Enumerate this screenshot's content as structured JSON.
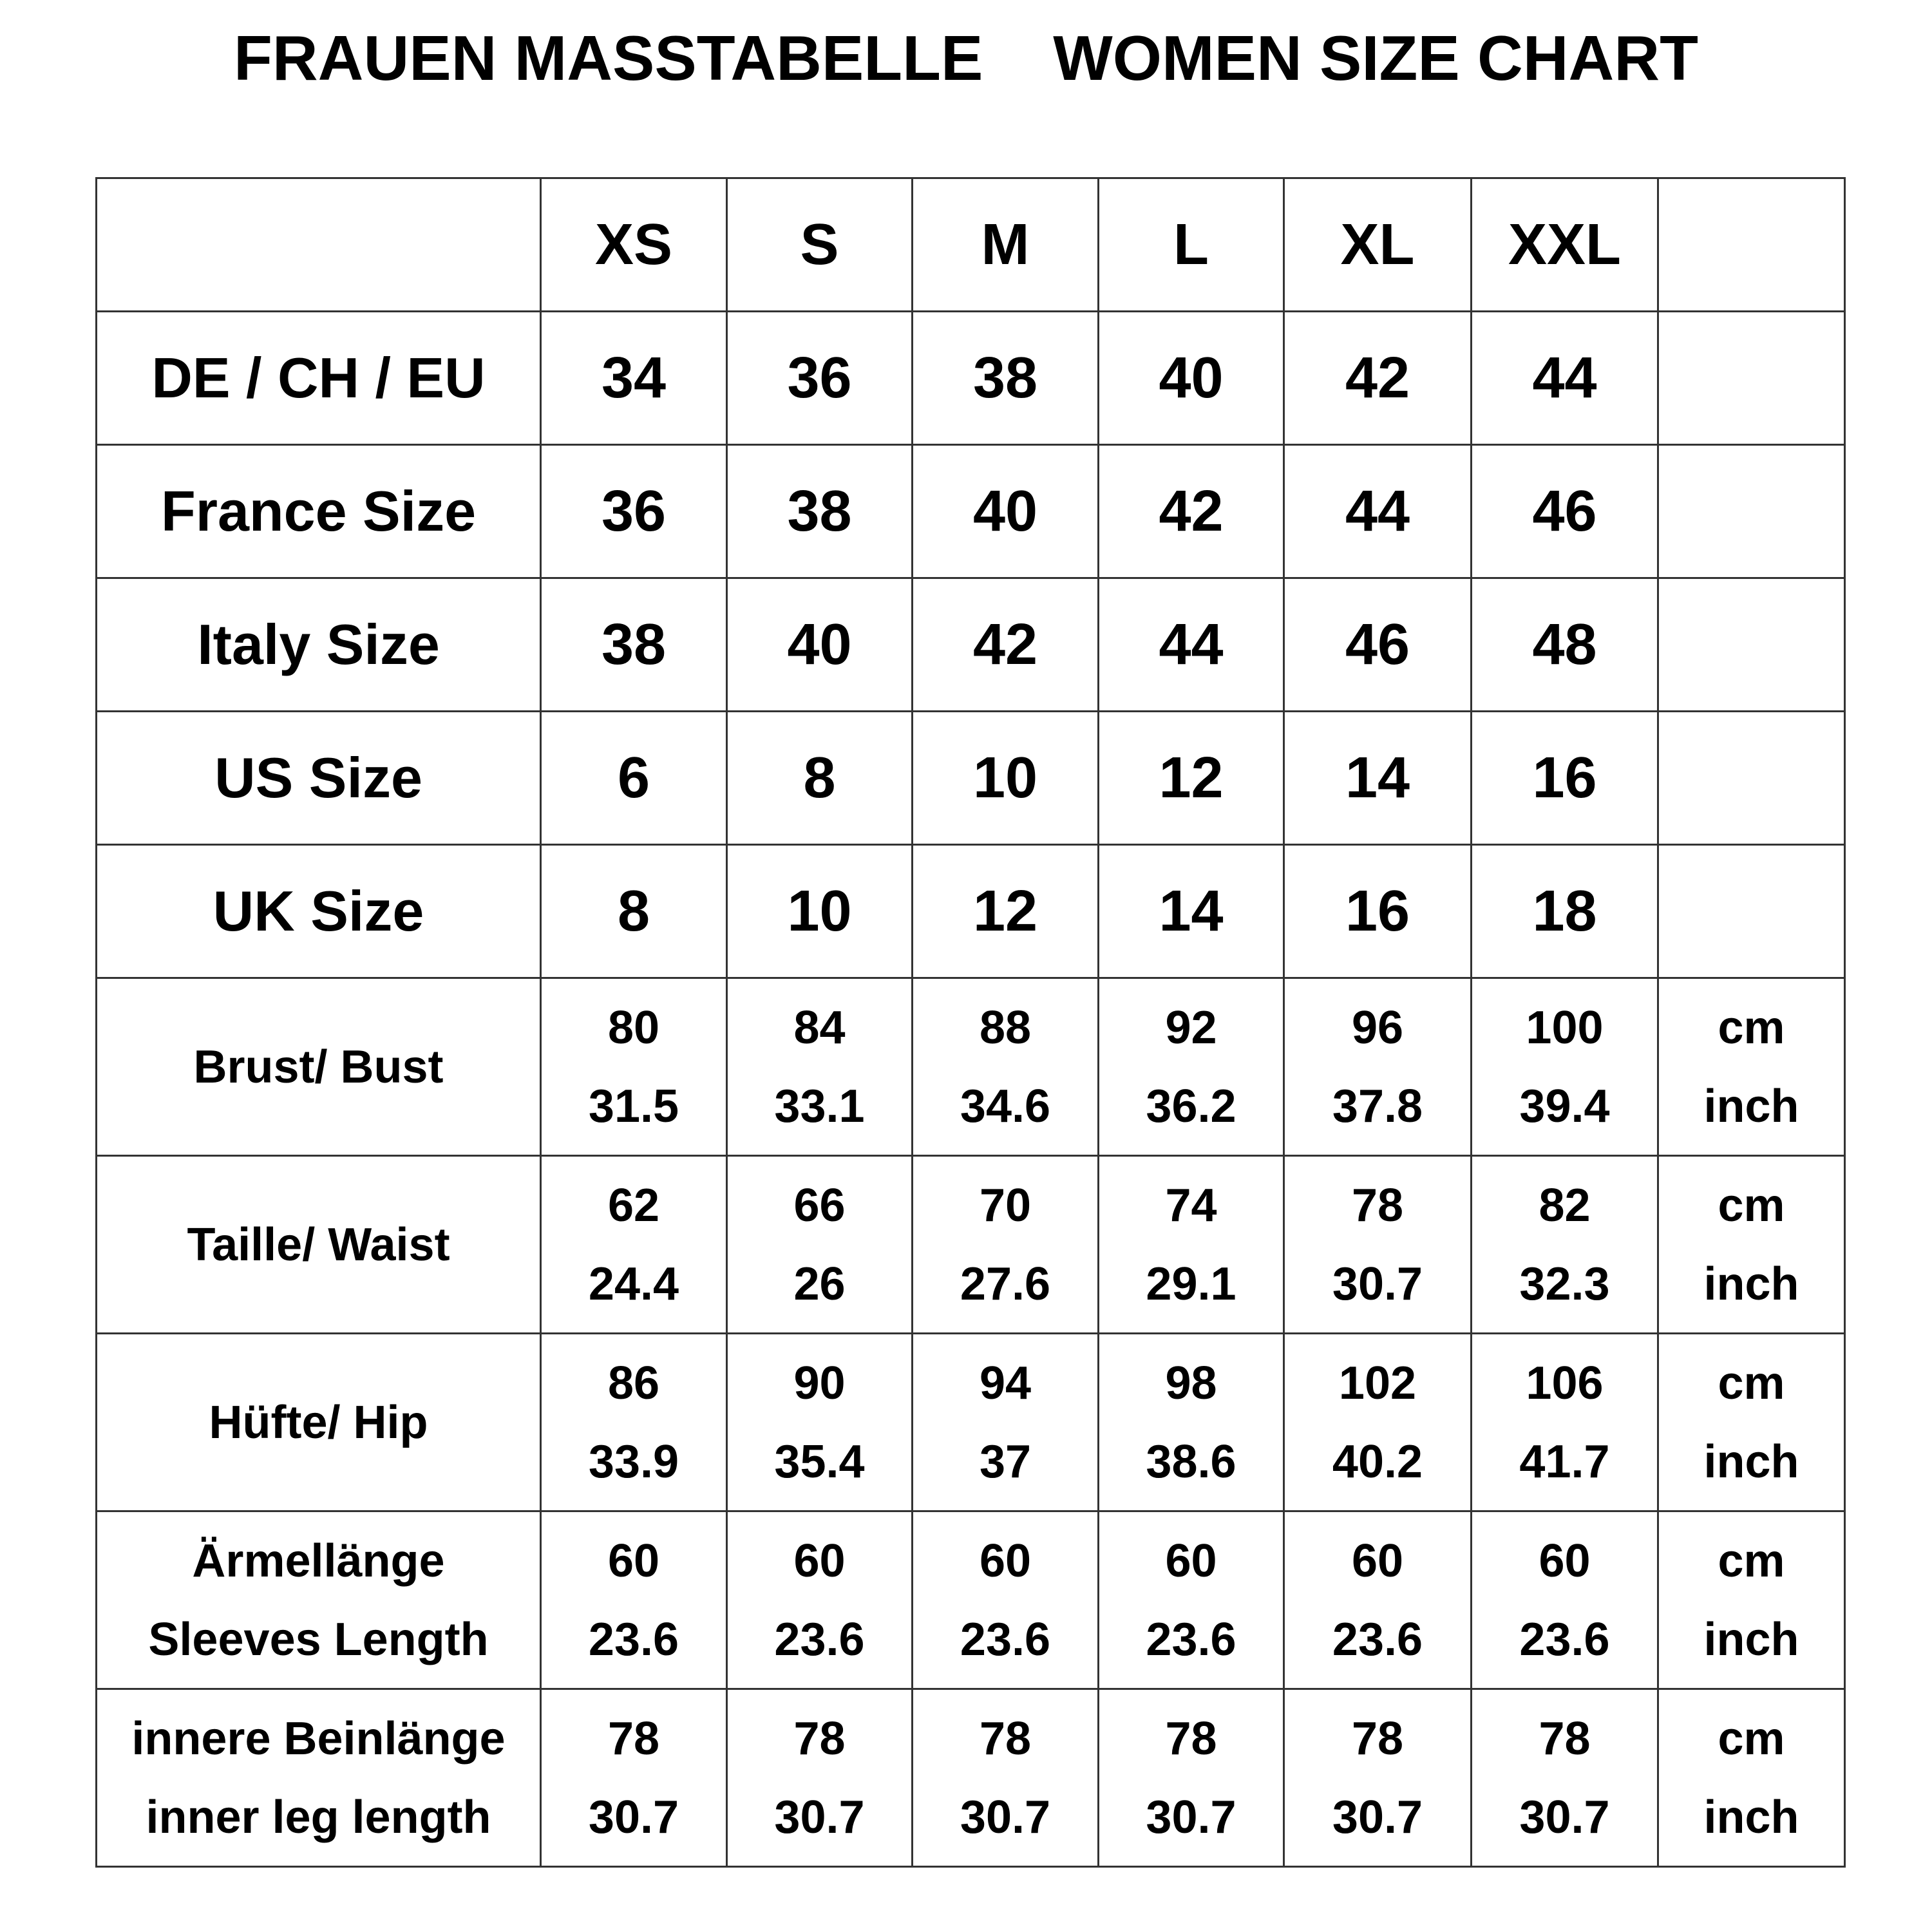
{
  "title": "FRAUEN MASSTABELLE    WOMEN SIZE CHART",
  "sizes": [
    "XS",
    "S",
    "M",
    "L",
    "XL",
    "XXL"
  ],
  "size_rows": [
    {
      "label": "DE / CH / EU",
      "values": [
        "34",
        "36",
        "38",
        "40",
        "42",
        "44"
      ]
    },
    {
      "label": "France Size",
      "values": [
        "36",
        "38",
        "40",
        "42",
        "44",
        "46"
      ]
    },
    {
      "label": "Italy Size",
      "values": [
        "38",
        "40",
        "42",
        "44",
        "46",
        "48"
      ]
    },
    {
      "label": "US Size",
      "values": [
        "6",
        "8",
        "10",
        "12",
        "14",
        "16"
      ]
    },
    {
      "label": "UK Size",
      "values": [
        "8",
        "10",
        "12",
        "14",
        "16",
        "18"
      ]
    }
  ],
  "units": {
    "cm": "cm",
    "inch": "inch"
  },
  "measurement_rows": [
    {
      "label": [
        "Brust/ Bust"
      ],
      "cm": [
        "80",
        "84",
        "88",
        "92",
        "96",
        "100"
      ],
      "inch": [
        "31.5",
        "33.1",
        "34.6",
        "36.2",
        "37.8",
        "39.4"
      ]
    },
    {
      "label": [
        "Taille/ Waist"
      ],
      "cm": [
        "62",
        "66",
        "70",
        "74",
        "78",
        "82"
      ],
      "inch": [
        "24.4",
        "26",
        "27.6",
        "29.1",
        "30.7",
        "32.3"
      ]
    },
    {
      "label": [
        "Hüfte/ Hip"
      ],
      "cm": [
        "86",
        "90",
        "94",
        "98",
        "102",
        "106"
      ],
      "inch": [
        "33.9",
        "35.4",
        "37",
        "38.6",
        "40.2",
        "41.7"
      ]
    },
    {
      "label": [
        "Ärmellänge",
        "Sleeves Length"
      ],
      "cm": [
        "60",
        "60",
        "60",
        "60",
        "60",
        "60"
      ],
      "inch": [
        "23.6",
        "23.6",
        "23.6",
        "23.6",
        "23.6",
        "23.6"
      ]
    },
    {
      "label": [
        "innere Beinlänge",
        "inner leg length"
      ],
      "cm": [
        "78",
        "78",
        "78",
        "78",
        "78",
        "78"
      ],
      "inch": [
        "30.7",
        "30.7",
        "30.7",
        "30.7",
        "30.7",
        "30.7"
      ]
    }
  ]
}
